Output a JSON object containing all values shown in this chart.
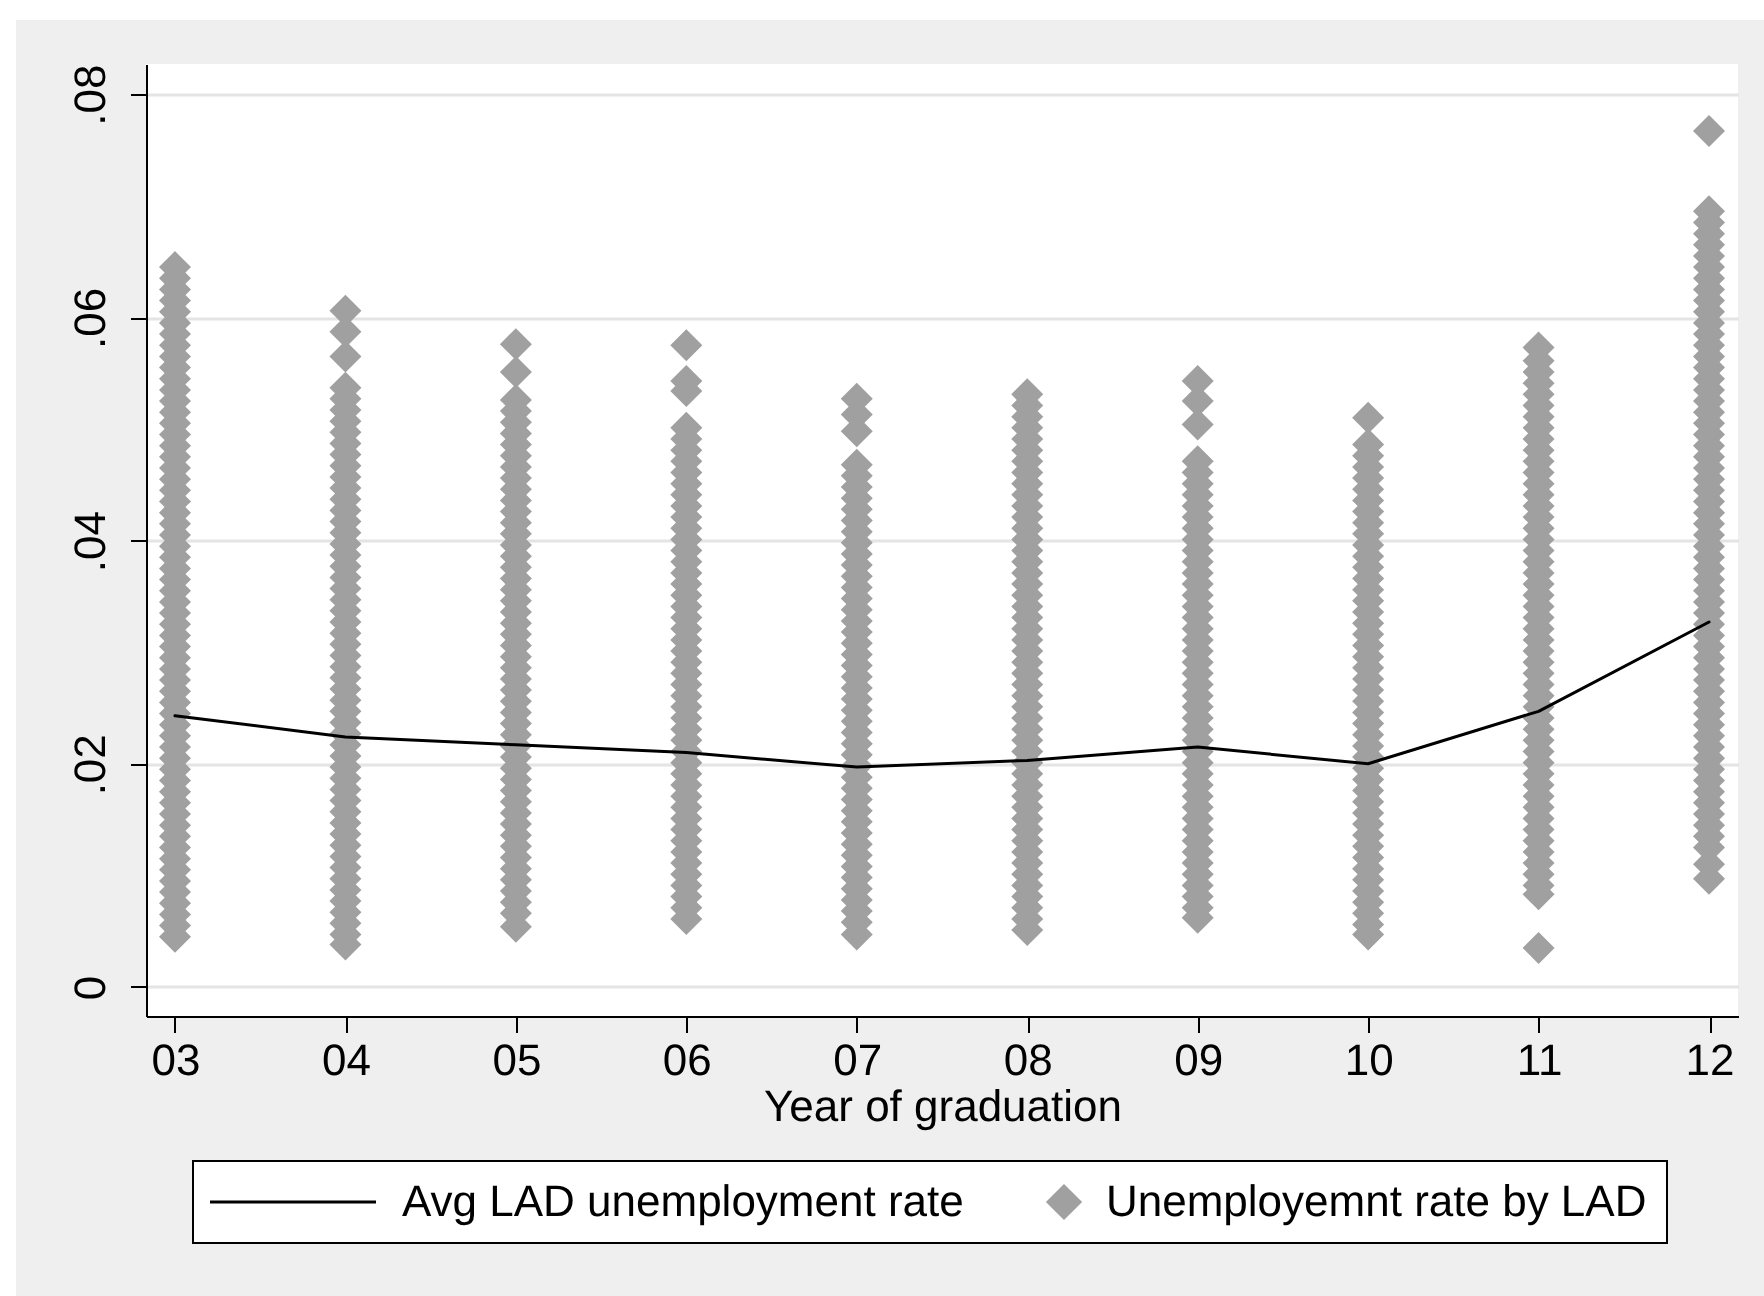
{
  "chart_data": {
    "type": "scatter",
    "xlabel": "Year of graduation",
    "categories": [
      "03",
      "04",
      "05",
      "06",
      "07",
      "08",
      "09",
      "10",
      "11",
      "12"
    ],
    "ylim": [
      -0.0026,
      0.0827
    ],
    "yticks": [
      0,
      {
        "value": 0.02,
        "label": ".02"
      },
      {
        "value": 0.04,
        "label": ".04"
      },
      {
        "value": 0.06,
        "label": ".06"
      },
      {
        "value": 0.08,
        "label": ".08"
      }
    ],
    "grid": "y",
    "legend": "bottom",
    "marker": "diamond",
    "series": [
      {
        "name": "Avg LAD unemployment rate",
        "type": "line",
        "marker": "none",
        "color": "#000000",
        "values": [
          0.0243,
          0.0224,
          0.0217,
          0.021,
          0.0197,
          0.0203,
          0.0215,
          0.02,
          0.0247,
          0.0327
        ]
      },
      {
        "name": "Unemployemnt rate by LAD",
        "color": "#a0a0a0",
        "x": [
          "03",
          "03",
          "03",
          "03",
          "03",
          "03",
          "03",
          "03",
          "03",
          "03",
          "03",
          "03",
          "03",
          "03",
          "03",
          "03",
          "03",
          "03",
          "03",
          "03",
          "03",
          "03",
          "03",
          "03",
          "03",
          "03",
          "03",
          "03",
          "03",
          "03",
          "03",
          "03",
          "03",
          "03",
          "03",
          "03",
          "03",
          "03",
          "03",
          "03",
          "03",
          "03",
          "03",
          "03",
          "03",
          "03",
          "03",
          "03",
          "03",
          "03",
          "03",
          "03",
          "03",
          "03",
          "03",
          "03",
          "03",
          "03",
          "03",
          "03",
          "03",
          "04",
          "04",
          "04",
          "04",
          "04",
          "04",
          "04",
          "04",
          "04",
          "04",
          "04",
          "04",
          "04",
          "04",
          "04",
          "04",
          "04",
          "04",
          "04",
          "04",
          "04",
          "04",
          "04",
          "04",
          "04",
          "04",
          "04",
          "04",
          "04",
          "04",
          "04",
          "04",
          "04",
          "04",
          "04",
          "04",
          "04",
          "04",
          "04",
          "04",
          "04",
          "04",
          "04",
          "04",
          "04",
          "04",
          "04",
          "04",
          "04",
          "04",
          "04",
          "04",
          "04",
          "04",
          "05",
          "05",
          "05",
          "05",
          "05",
          "05",
          "05",
          "05",
          "05",
          "05",
          "05",
          "05",
          "05",
          "05",
          "05",
          "05",
          "05",
          "05",
          "05",
          "05",
          "05",
          "05",
          "05",
          "05",
          "05",
          "05",
          "05",
          "05",
          "05",
          "05",
          "05",
          "05",
          "05",
          "05",
          "05",
          "05",
          "05",
          "05",
          "05",
          "05",
          "05",
          "05",
          "05",
          "05",
          "05",
          "05",
          "05",
          "05",
          "05",
          "05",
          "06",
          "06",
          "06",
          "06",
          "06",
          "06",
          "06",
          "06",
          "06",
          "06",
          "06",
          "06",
          "06",
          "06",
          "06",
          "06",
          "06",
          "06",
          "06",
          "06",
          "06",
          "06",
          "06",
          "06",
          "06",
          "06",
          "06",
          "06",
          "06",
          "06",
          "06",
          "06",
          "06",
          "06",
          "06",
          "06",
          "06",
          "06",
          "06",
          "06",
          "06",
          "06",
          "06",
          "06",
          "06",
          "06",
          "06",
          "06",
          "07",
          "07",
          "07",
          "07",
          "07",
          "07",
          "07",
          "07",
          "07",
          "07",
          "07",
          "07",
          "07",
          "07",
          "07",
          "07",
          "07",
          "07",
          "07",
          "07",
          "07",
          "07",
          "07",
          "07",
          "07",
          "07",
          "07",
          "07",
          "07",
          "07",
          "07",
          "07",
          "07",
          "07",
          "07",
          "07",
          "07",
          "07",
          "07",
          "07",
          "07",
          "07",
          "07",
          "07",
          "07",
          "07",
          "08",
          "08",
          "08",
          "08",
          "08",
          "08",
          "08",
          "08",
          "08",
          "08",
          "08",
          "08",
          "08",
          "08",
          "08",
          "08",
          "08",
          "08",
          "08",
          "08",
          "08",
          "08",
          "08",
          "08",
          "08",
          "08",
          "08",
          "08",
          "08",
          "08",
          "08",
          "08",
          "08",
          "08",
          "08",
          "08",
          "08",
          "08",
          "08",
          "08",
          "08",
          "08",
          "08",
          "08",
          "08",
          "08",
          "08",
          "08",
          "08",
          "09",
          "09",
          "09",
          "09",
          "09",
          "09",
          "09",
          "09",
          "09",
          "09",
          "09",
          "09",
          "09",
          "09",
          "09",
          "09",
          "09",
          "09",
          "09",
          "09",
          "09",
          "09",
          "09",
          "09",
          "09",
          "09",
          "09",
          "09",
          "09",
          "09",
          "09",
          "09",
          "09",
          "09",
          "09",
          "09",
          "09",
          "09",
          "09",
          "09",
          "09",
          "09",
          "09",
          "09",
          "09",
          "10",
          "10",
          "10",
          "10",
          "10",
          "10",
          "10",
          "10",
          "10",
          "10",
          "10",
          "10",
          "10",
          "10",
          "10",
          "10",
          "10",
          "10",
          "10",
          "10",
          "10",
          "10",
          "10",
          "10",
          "10",
          "10",
          "10",
          "10",
          "10",
          "10",
          "10",
          "10",
          "10",
          "10",
          "10",
          "10",
          "10",
          "10",
          "10",
          "10",
          "10",
          "10",
          "10",
          "10",
          "10",
          "10",
          "11",
          "11",
          "11",
          "11",
          "11",
          "11",
          "11",
          "11",
          "11",
          "11",
          "11",
          "11",
          "11",
          "11",
          "11",
          "11",
          "11",
          "11",
          "11",
          "11",
          "11",
          "11",
          "11",
          "11",
          "11",
          "11",
          "11",
          "11",
          "11",
          "11",
          "11",
          "11",
          "11",
          "11",
          "11",
          "11",
          "11",
          "11",
          "11",
          "11",
          "11",
          "11",
          "11",
          "11",
          "11",
          "11",
          "11",
          "11",
          "11",
          "11",
          "11",
          "12",
          "12",
          "12",
          "12",
          "12",
          "12",
          "12",
          "12",
          "12",
          "12",
          "12",
          "12",
          "12",
          "12",
          "12",
          "12",
          "12",
          "12",
          "12",
          "12",
          "12",
          "12",
          "12",
          "12",
          "12",
          "12",
          "12",
          "12",
          "12",
          "12",
          "12",
          "12",
          "12",
          "12",
          "12",
          "12",
          "12",
          "12",
          "12",
          "12",
          "12",
          "12",
          "12",
          "12",
          "12",
          "12",
          "12",
          "12",
          "12",
          "12",
          "12",
          "12",
          "12",
          "12",
          "12",
          "12",
          "12",
          "12",
          "12",
          "12",
          "12"
        ],
        "values": [
          0.0645,
          0.0635,
          0.0625,
          0.0615,
          0.0605,
          0.0595,
          0.0585,
          0.0575,
          0.0565,
          0.0555,
          0.0545,
          0.0535,
          0.0525,
          0.0515,
          0.0505,
          0.0495,
          0.0485,
          0.0475,
          0.0465,
          0.0455,
          0.0445,
          0.0435,
          0.0425,
          0.0415,
          0.0405,
          0.0395,
          0.0385,
          0.0375,
          0.0365,
          0.0355,
          0.0345,
          0.0335,
          0.0325,
          0.0315,
          0.0305,
          0.0295,
          0.0285,
          0.0275,
          0.0265,
          0.0255,
          0.0245,
          0.0235,
          0.0225,
          0.0215,
          0.0205,
          0.0195,
          0.0185,
          0.0175,
          0.0165,
          0.0155,
          0.0145,
          0.0135,
          0.0125,
          0.0115,
          0.0105,
          0.0095,
          0.0085,
          0.0075,
          0.0065,
          0.0055,
          0.0045,
          0.0606,
          0.0587,
          0.0565,
          0.0537,
          0.0527,
          0.0517,
          0.0507,
          0.0497,
          0.0487,
          0.0477,
          0.0467,
          0.0457,
          0.0447,
          0.0437,
          0.0427,
          0.0417,
          0.0407,
          0.0397,
          0.0387,
          0.0377,
          0.0367,
          0.0357,
          0.0347,
          0.0337,
          0.0327,
          0.0317,
          0.0307,
          0.0297,
          0.0287,
          0.0277,
          0.0267,
          0.0257,
          0.0247,
          0.0237,
          0.0227,
          0.0217,
          0.0207,
          0.0197,
          0.0187,
          0.0177,
          0.0167,
          0.0157,
          0.0147,
          0.0137,
          0.0127,
          0.0117,
          0.0107,
          0.0097,
          0.0087,
          0.0077,
          0.0067,
          0.0057,
          0.0047,
          0.0038,
          0.0576,
          0.0551,
          0.0526,
          0.0516,
          0.0506,
          0.0496,
          0.0486,
          0.0476,
          0.0466,
          0.0456,
          0.0446,
          0.0436,
          0.0426,
          0.0416,
          0.0406,
          0.0396,
          0.0386,
          0.0376,
          0.0366,
          0.0356,
          0.0346,
          0.0336,
          0.0326,
          0.0316,
          0.0306,
          0.0296,
          0.0286,
          0.0276,
          0.0266,
          0.0256,
          0.0246,
          0.0236,
          0.0226,
          0.0216,
          0.0206,
          0.0196,
          0.0186,
          0.0176,
          0.0166,
          0.0156,
          0.0146,
          0.0136,
          0.0126,
          0.0116,
          0.0106,
          0.0096,
          0.0086,
          0.0076,
          0.0066,
          0.0054,
          0.0575,
          0.0543,
          0.0534,
          0.0501,
          0.0491,
          0.0481,
          0.0471,
          0.0461,
          0.0451,
          0.0441,
          0.0431,
          0.0421,
          0.0411,
          0.0401,
          0.0391,
          0.0381,
          0.0371,
          0.0361,
          0.0351,
          0.0341,
          0.0331,
          0.0321,
          0.0311,
          0.0301,
          0.0291,
          0.0281,
          0.0271,
          0.0261,
          0.0251,
          0.0241,
          0.0231,
          0.0221,
          0.0211,
          0.0201,
          0.0191,
          0.0181,
          0.0171,
          0.0161,
          0.0151,
          0.0141,
          0.0131,
          0.0121,
          0.0111,
          0.0101,
          0.0091,
          0.0081,
          0.0071,
          0.0061,
          0.0527,
          0.0513,
          0.0498,
          0.0468,
          0.0458,
          0.0448,
          0.0438,
          0.0428,
          0.0418,
          0.0408,
          0.0398,
          0.0388,
          0.0378,
          0.0368,
          0.0358,
          0.0348,
          0.0338,
          0.0328,
          0.0318,
          0.0308,
          0.0298,
          0.0288,
          0.0278,
          0.0268,
          0.0258,
          0.0248,
          0.0238,
          0.0228,
          0.0218,
          0.0208,
          0.0198,
          0.0188,
          0.0178,
          0.0168,
          0.0158,
          0.0148,
          0.0138,
          0.0128,
          0.0118,
          0.0108,
          0.0098,
          0.0088,
          0.0078,
          0.0068,
          0.0058,
          0.0047,
          0.0531,
          0.0521,
          0.0511,
          0.0501,
          0.0491,
          0.0481,
          0.0471,
          0.0461,
          0.0451,
          0.0441,
          0.0431,
          0.0421,
          0.0411,
          0.0401,
          0.0391,
          0.0381,
          0.0371,
          0.0361,
          0.0351,
          0.0341,
          0.0331,
          0.0321,
          0.0311,
          0.0301,
          0.0291,
          0.0281,
          0.0271,
          0.0261,
          0.0251,
          0.0241,
          0.0231,
          0.0221,
          0.0211,
          0.0201,
          0.0191,
          0.0181,
          0.0171,
          0.0161,
          0.0151,
          0.0141,
          0.0131,
          0.0121,
          0.0111,
          0.0101,
          0.0091,
          0.0081,
          0.0071,
          0.0061,
          0.0051,
          0.0543,
          0.0525,
          0.0504,
          0.0471,
          0.0461,
          0.0451,
          0.0441,
          0.0431,
          0.0421,
          0.0411,
          0.0401,
          0.0391,
          0.0381,
          0.0371,
          0.0361,
          0.0351,
          0.0341,
          0.0331,
          0.0321,
          0.0311,
          0.0301,
          0.0291,
          0.0281,
          0.0271,
          0.0261,
          0.0251,
          0.0241,
          0.0231,
          0.0221,
          0.0211,
          0.0201,
          0.0191,
          0.0181,
          0.0171,
          0.0161,
          0.0151,
          0.0141,
          0.0131,
          0.0121,
          0.0111,
          0.0101,
          0.0091,
          0.0081,
          0.0071,
          0.0062,
          0.051,
          0.0486,
          0.0476,
          0.0466,
          0.0456,
          0.0446,
          0.0436,
          0.0426,
          0.0416,
          0.0406,
          0.0396,
          0.0386,
          0.0376,
          0.0366,
          0.0356,
          0.0346,
          0.0336,
          0.0326,
          0.0316,
          0.0306,
          0.0296,
          0.0286,
          0.0276,
          0.0266,
          0.0256,
          0.0246,
          0.0236,
          0.0226,
          0.0216,
          0.0206,
          0.0196,
          0.0186,
          0.0176,
          0.0166,
          0.0156,
          0.0146,
          0.0136,
          0.0126,
          0.0116,
          0.0106,
          0.0096,
          0.0086,
          0.0076,
          0.0066,
          0.0056,
          0.0047,
          0.0573,
          0.0561,
          0.0551,
          0.0541,
          0.0531,
          0.0521,
          0.0511,
          0.0501,
          0.0491,
          0.0481,
          0.0471,
          0.0461,
          0.0451,
          0.0441,
          0.0431,
          0.0421,
          0.0411,
          0.0401,
          0.0391,
          0.0381,
          0.0371,
          0.0361,
          0.0351,
          0.0341,
          0.0331,
          0.0321,
          0.0311,
          0.0301,
          0.0291,
          0.0281,
          0.0271,
          0.0261,
          0.0251,
          0.0241,
          0.0231,
          0.0221,
          0.0211,
          0.0201,
          0.0191,
          0.0181,
          0.0171,
          0.0161,
          0.0151,
          0.0141,
          0.0131,
          0.0121,
          0.0111,
          0.0101,
          0.0091,
          0.0083,
          0.0035,
          0.0767,
          0.0695,
          0.0685,
          0.0675,
          0.0665,
          0.0655,
          0.0645,
          0.0635,
          0.0625,
          0.0615,
          0.0605,
          0.0595,
          0.0585,
          0.0575,
          0.0565,
          0.0555,
          0.0545,
          0.0535,
          0.0525,
          0.0515,
          0.0505,
          0.0495,
          0.0485,
          0.0475,
          0.0465,
          0.0455,
          0.0445,
          0.0435,
          0.0425,
          0.0415,
          0.0405,
          0.0395,
          0.0385,
          0.0375,
          0.0365,
          0.0355,
          0.0345,
          0.0335,
          0.0325,
          0.0315,
          0.0305,
          0.0295,
          0.0285,
          0.0275,
          0.0265,
          0.0255,
          0.0245,
          0.0235,
          0.0225,
          0.0215,
          0.0205,
          0.0195,
          0.0185,
          0.0175,
          0.0165,
          0.0155,
          0.0145,
          0.0135,
          0.0125,
          0.011,
          0.0097
        ]
      }
    ]
  }
}
